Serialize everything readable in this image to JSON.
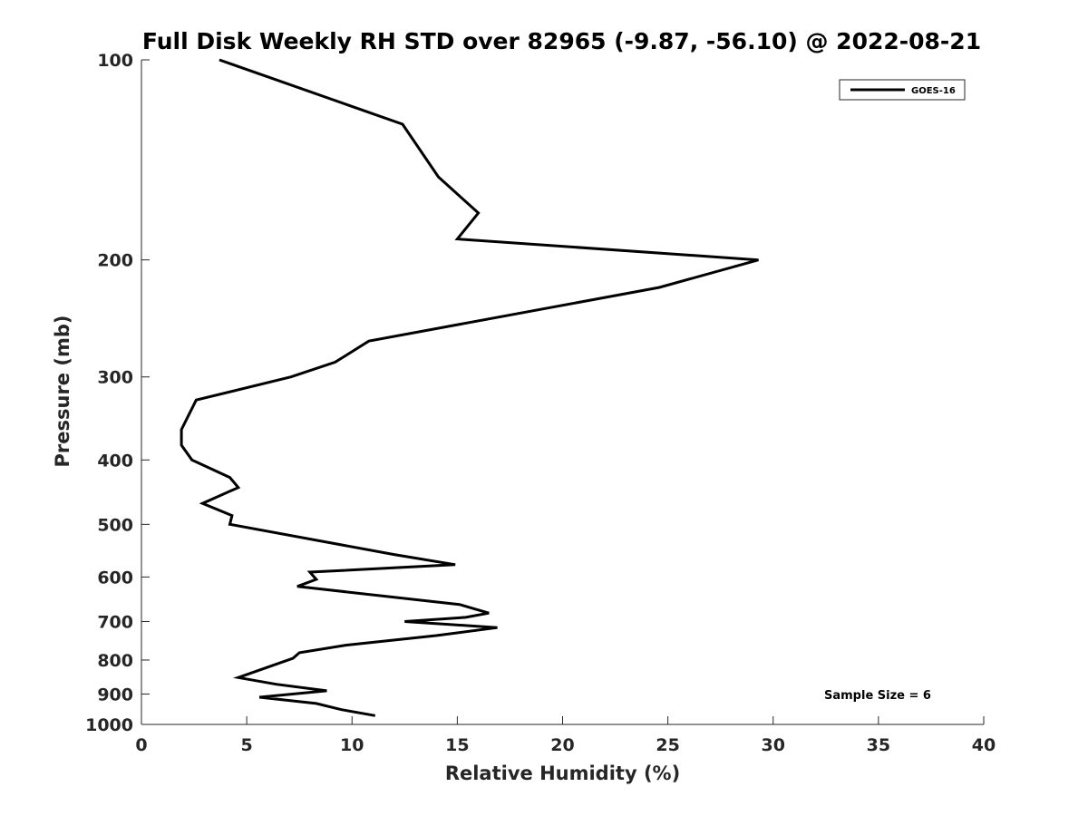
{
  "chart_data": {
    "type": "line",
    "title": "Full Disk Weekly RH STD over 82965 (-9.87, -56.10) @ 2022-08-21",
    "xlabel": "Relative Humidity (%)",
    "ylabel": "Pressure (mb)",
    "xlim": [
      0,
      40
    ],
    "ylim": [
      100,
      1000
    ],
    "y_scale": "log",
    "y_reversed": true,
    "x_ticks": [
      0,
      5,
      10,
      15,
      20,
      25,
      30,
      35,
      40
    ],
    "y_ticks": [
      100,
      200,
      300,
      400,
      500,
      600,
      700,
      800,
      900,
      1000
    ],
    "grid": false,
    "legend_position": "top-right",
    "annotation": "Sample Size = 6",
    "series": [
      {
        "name": "GOES-16",
        "color": "#000000",
        "x": [
          3.7,
          12.4,
          14.1,
          16.0,
          15.0,
          29.3,
          24.6,
          10.8,
          9.2,
          7.1,
          2.6,
          1.9,
          1.9,
          2.4,
          4.2,
          4.6,
          2.9,
          4.3,
          4.2,
          12.0,
          14.9,
          8.0,
          8.3,
          7.4,
          15.1,
          16.5,
          15.4,
          12.5,
          16.9,
          14.0,
          9.7,
          7.5,
          7.2,
          6.0,
          4.6,
          6.4,
          8.8,
          5.6,
          8.3,
          9.5,
          11.1
        ],
        "y": [
          100,
          125,
          150,
          170,
          186,
          200,
          220,
          265,
          285,
          300,
          325,
          360,
          380,
          400,
          425,
          440,
          465,
          485,
          500,
          555,
          575,
          590,
          605,
          620,
          660,
          680,
          690,
          700,
          715,
          735,
          760,
          780,
          795,
          820,
          850,
          870,
          890,
          910,
          930,
          950,
          970
        ]
      }
    ]
  }
}
